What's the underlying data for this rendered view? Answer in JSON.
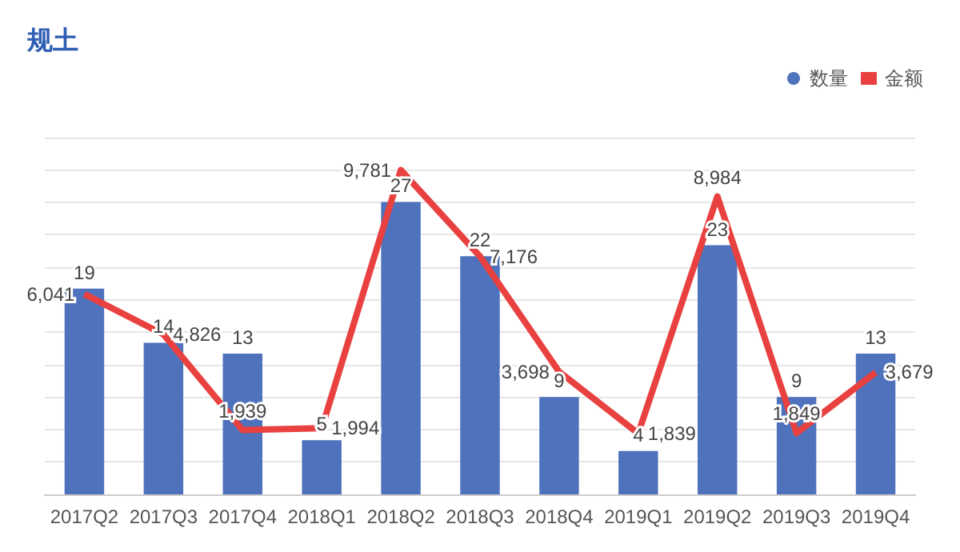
{
  "chart_data": {
    "type": "bar",
    "title": "规土",
    "categories": [
      "2017Q2",
      "2017Q3",
      "2017Q4",
      "2018Q1",
      "2018Q2",
      "2018Q3",
      "2018Q4",
      "2019Q1",
      "2019Q2",
      "2019Q3",
      "2019Q4"
    ],
    "series": [
      {
        "name": "数量",
        "type": "bar",
        "color": "#4f72bd",
        "values": [
          19,
          14,
          13,
          5,
          27,
          22,
          9,
          4,
          23,
          9,
          13
        ],
        "value_labels": [
          "19",
          "14",
          "13",
          "5",
          "27",
          "22",
          "9",
          "4",
          "23",
          "9",
          "13"
        ]
      },
      {
        "name": "金额",
        "type": "line",
        "axis": "y2",
        "color": "#e8413f",
        "values": [
          6041,
          4826,
          1939,
          1994,
          9781,
          7176,
          3698,
          1839,
          8984,
          1849,
          3679
        ],
        "value_labels": [
          "6,041",
          "4,826",
          "1,939",
          "1,994",
          "9,781",
          "7,176",
          "3,698",
          "1,839",
          "8,984",
          "1,849",
          "3,679"
        ]
      }
    ],
    "grid": "y",
    "legend": "top right",
    "marker": "none",
    "line_style": "solid"
  }
}
